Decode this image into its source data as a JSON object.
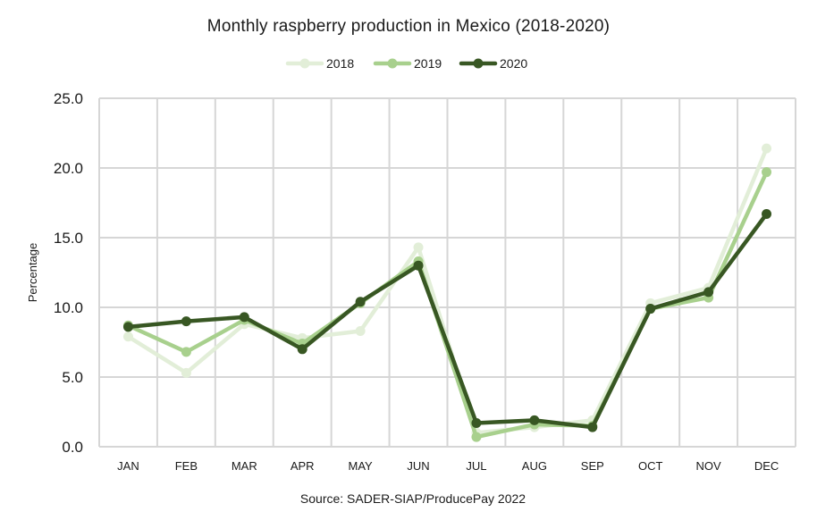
{
  "chart_data": {
    "type": "line",
    "title": "Monthly raspberry production in Mexico (2018-2020)",
    "ylabel": "Percentage",
    "xlabel": "",
    "ylim": [
      0,
      25
    ],
    "yticks": [
      "0.0",
      "5.0",
      "10.0",
      "15.0",
      "20.0",
      "25.0"
    ],
    "yticks_values": [
      0,
      5,
      10,
      15,
      20,
      25
    ],
    "categories": [
      "JAN",
      "FEB",
      "MAR",
      "APR",
      "MAY",
      "JUN",
      "JUL",
      "AUG",
      "SEP",
      "OCT",
      "NOV",
      "DEC"
    ],
    "legend_position": "top-center",
    "grid": true,
    "source": "Source: SADER-SIAP/ProducePay 2022",
    "series": [
      {
        "name": "2018",
        "color": "#e2eed8",
        "values": [
          7.9,
          5.3,
          8.8,
          7.8,
          8.3,
          14.3,
          1.0,
          1.4,
          1.9,
          10.3,
          11.4,
          21.4
        ]
      },
      {
        "name": "2019",
        "color": "#a8d08d",
        "values": [
          8.7,
          6.8,
          9.1,
          7.4,
          10.3,
          13.3,
          0.7,
          1.6,
          1.5,
          9.9,
          10.7,
          19.7
        ]
      },
      {
        "name": "2020",
        "color": "#385723",
        "values": [
          8.6,
          9.0,
          9.3,
          7.0,
          10.4,
          13.0,
          1.7,
          1.9,
          1.4,
          9.9,
          11.1,
          16.7
        ]
      }
    ]
  }
}
